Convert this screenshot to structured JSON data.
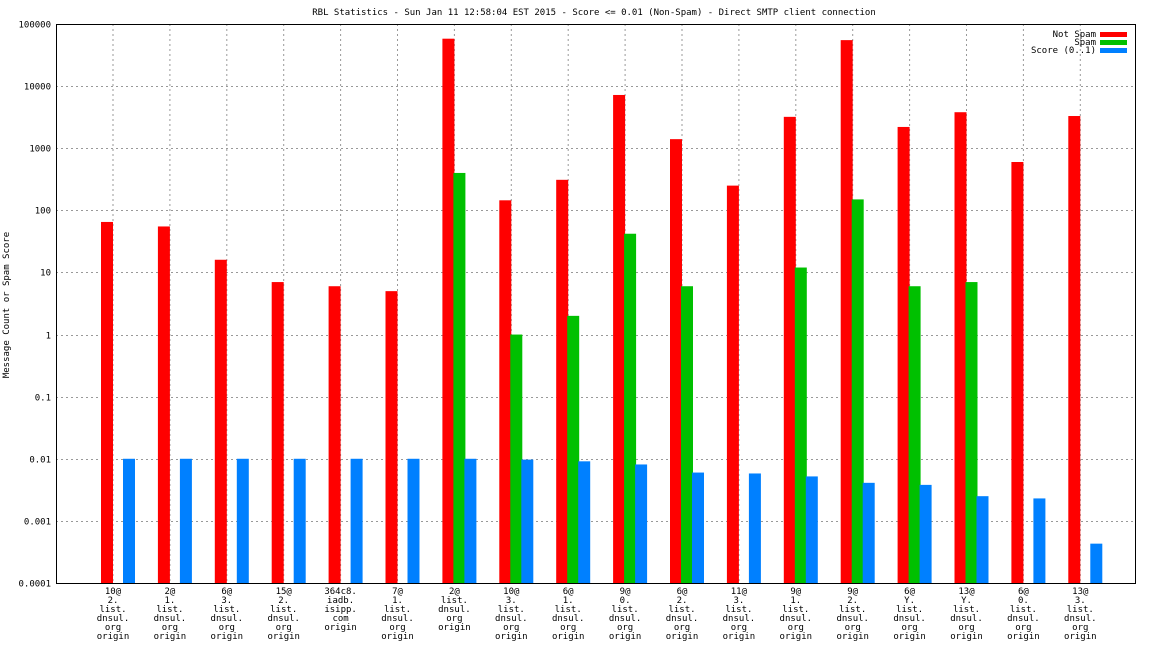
{
  "chart_data": {
    "type": "bar",
    "title": "RBL Statistics - Sun Jan 11 12:58:04 EST 2015 - Score <= 0.01 (Non-Spam) - Direct SMTP client connection",
    "ylabel": "Message Count or Spam Score",
    "xlabel": "",
    "yscale": "log",
    "ylim": [
      0.0001,
      100000
    ],
    "yticks": [
      "0.0001",
      "0.001",
      "0.01",
      "0.1",
      "1",
      "10",
      "100",
      "1000",
      "10000",
      "100000"
    ],
    "grid": true,
    "legend_position": "top-right",
    "categories": [
      [
        "10@",
        "2.",
        "list.",
        "dnsul.",
        "org",
        "origin"
      ],
      [
        "2@",
        "1.",
        "list.",
        "dnsul.",
        "org",
        "origin"
      ],
      [
        "6@",
        "3.",
        "list.",
        "dnsul.",
        "org",
        "origin"
      ],
      [
        "15@",
        "2.",
        "list.",
        "dnsul.",
        "org",
        "origin"
      ],
      [
        "364c8.",
        "iadb.",
        "isipp.",
        "com",
        "origin"
      ],
      [
        "7@",
        "1.",
        "list.",
        "dnsul.",
        "org",
        "origin"
      ],
      [
        "2@",
        "list.",
        "dnsul.",
        "org",
        "origin"
      ],
      [
        "10@",
        "3.",
        "list.",
        "dnsul.",
        "org",
        "origin"
      ],
      [
        "6@",
        "1.",
        "list.",
        "dnsul.",
        "org",
        "origin"
      ],
      [
        "9@",
        "0.",
        "list.",
        "dnsul.",
        "org",
        "origin"
      ],
      [
        "6@",
        "2.",
        "list.",
        "dnsul.",
        "org",
        "origin"
      ],
      [
        "11@",
        "3.",
        "list.",
        "dnsul.",
        "org",
        "origin"
      ],
      [
        "9@",
        "1.",
        "list.",
        "dnsul.",
        "org",
        "origin"
      ],
      [
        "9@",
        "2.",
        "list.",
        "dnsul.",
        "org",
        "origin"
      ],
      [
        "6@",
        "Y.",
        "list.",
        "dnsul.",
        "org",
        "origin"
      ],
      [
        "13@",
        "Y.",
        "list.",
        "dnsul.",
        "org",
        "origin"
      ],
      [
        "6@",
        "0.",
        "list.",
        "dnsul.",
        "org",
        "origin"
      ],
      [
        "13@",
        "3.",
        "list.",
        "dnsul.",
        "org",
        "origin"
      ]
    ],
    "series": [
      {
        "name": "Not Spam",
        "color": "#ff0000",
        "values": [
          65,
          55,
          16,
          7,
          6,
          5,
          58000,
          145,
          310,
          7200,
          1400,
          250,
          3200,
          55000,
          2200,
          3800,
          600,
          3300
        ]
      },
      {
        "name": "Spam",
        "color": "#00c000",
        "values": [
          null,
          null,
          null,
          null,
          null,
          null,
          400,
          1,
          2,
          42,
          6,
          0,
          12,
          150,
          6,
          7,
          0,
          0
        ]
      },
      {
        "name": "Score (0..1)",
        "color": "#0080ff",
        "values": [
          0.01,
          0.01,
          0.01,
          0.01,
          0.01,
          0.01,
          0.01,
          0.0097,
          0.0091,
          0.0081,
          0.006,
          0.0058,
          0.0052,
          0.0041,
          0.0038,
          0.0025,
          0.0023,
          0.00043
        ]
      }
    ]
  }
}
